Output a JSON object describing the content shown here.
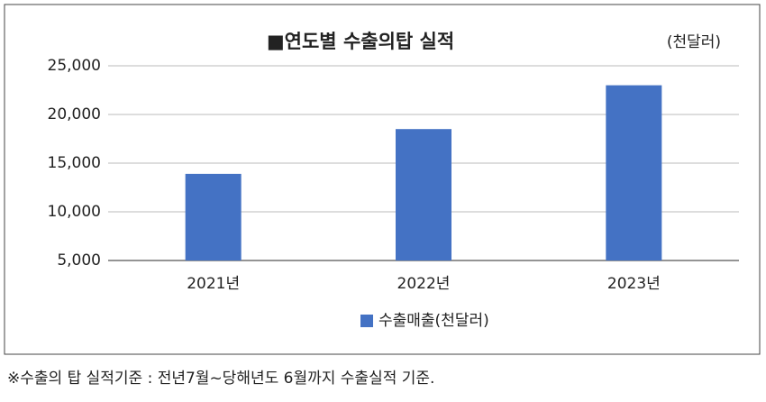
{
  "chart_data": {
    "type": "bar",
    "title": "■연도별 수출의탑 실적",
    "unit": "(천달러)",
    "categories": [
      "2021년",
      "2022년",
      "2023년"
    ],
    "series": [
      {
        "name": "수출매출(천달러)",
        "color": "#4472c4",
        "values": [
          13900,
          18500,
          23000
        ]
      }
    ],
    "ylim": [
      5000,
      25000
    ],
    "yticks": [
      {
        "value": 5000,
        "label": "5,000"
      },
      {
        "value": 10000,
        "label": "10,000"
      },
      {
        "value": 15000,
        "label": "15,000"
      },
      {
        "value": 20000,
        "label": "20,000"
      },
      {
        "value": 25000,
        "label": "25,000"
      }
    ],
    "grid": true
  },
  "footnote": "※수출의 탑 실적기준 : 전년7월~당해년도 6월까지 수출실적 기준."
}
